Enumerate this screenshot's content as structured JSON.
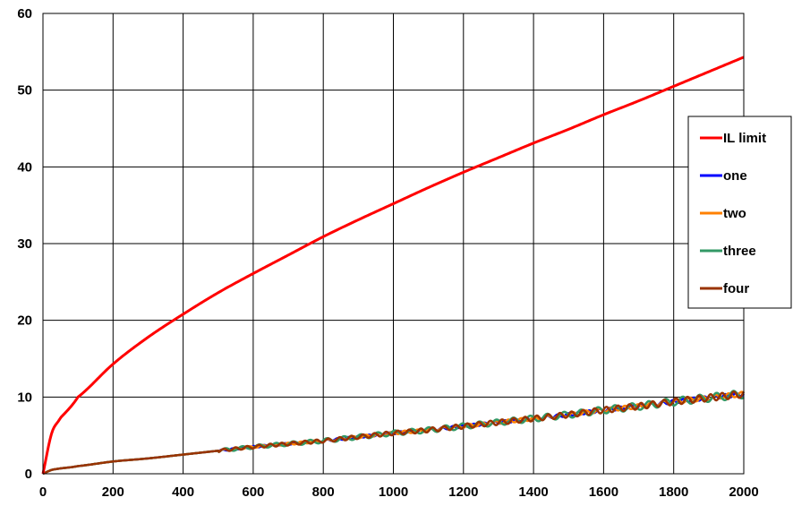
{
  "chart_data": {
    "type": "line",
    "title": "",
    "xlabel": "",
    "ylabel": "",
    "xlim": [
      0,
      2000
    ],
    "ylim": [
      0,
      60
    ],
    "x_ticks": [
      0,
      200,
      400,
      600,
      800,
      1000,
      1200,
      1400,
      1600,
      1800,
      2000
    ],
    "y_ticks": [
      0,
      10,
      20,
      30,
      40,
      50,
      60
    ],
    "grid": true,
    "legend_position": "right",
    "x": [
      0,
      25,
      50,
      100,
      200,
      300,
      400,
      500,
      600,
      700,
      800,
      900,
      1000,
      1100,
      1200,
      1300,
      1400,
      1500,
      1600,
      1700,
      1800,
      1900,
      2000
    ],
    "series": [
      {
        "name": "IL limit",
        "color": "#ff0000",
        "values": [
          0,
          5.3,
          7.3,
          10.0,
          14.3,
          17.8,
          20.8,
          23.6,
          26.1,
          28.5,
          30.9,
          33.1,
          35.2,
          37.3,
          39.3,
          41.2,
          43.1,
          44.9,
          46.8,
          48.6,
          50.5,
          52.4,
          54.3
        ]
      },
      {
        "name": "one",
        "color": "#0000ff",
        "values": [
          0,
          0.5,
          0.7,
          1.0,
          1.6,
          2.0,
          2.5,
          3.0,
          3.5,
          3.9,
          4.3,
          4.8,
          5.3,
          5.7,
          6.2,
          6.7,
          7.2,
          7.7,
          8.3,
          8.8,
          9.4,
          9.9,
          10.4
        ]
      },
      {
        "name": "two",
        "color": "#ff8000",
        "values": [
          0,
          0.5,
          0.7,
          1.0,
          1.6,
          2.0,
          2.5,
          3.0,
          3.5,
          3.9,
          4.3,
          4.8,
          5.3,
          5.7,
          6.2,
          6.7,
          7.2,
          7.7,
          8.3,
          8.8,
          9.4,
          9.9,
          10.4
        ]
      },
      {
        "name": "three",
        "color": "#339966",
        "values": [
          0,
          0.5,
          0.7,
          1.0,
          1.6,
          2.0,
          2.5,
          3.0,
          3.5,
          3.9,
          4.3,
          4.8,
          5.3,
          5.7,
          6.2,
          6.7,
          7.2,
          7.7,
          8.3,
          8.8,
          9.4,
          9.9,
          10.4
        ]
      },
      {
        "name": "four",
        "color": "#993300",
        "values": [
          0,
          0.5,
          0.7,
          1.0,
          1.6,
          2.0,
          2.5,
          3.0,
          3.5,
          3.9,
          4.3,
          4.8,
          5.3,
          5.7,
          6.2,
          6.7,
          7.2,
          7.7,
          8.3,
          8.8,
          9.4,
          9.9,
          10.4
        ]
      }
    ]
  }
}
